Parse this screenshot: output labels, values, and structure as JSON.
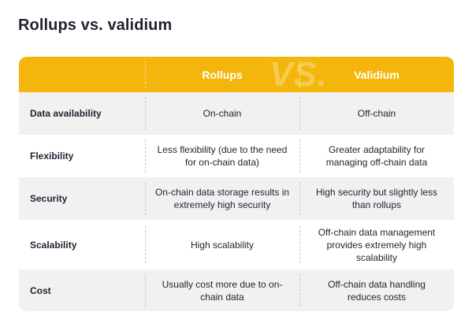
{
  "title": "Rollups vs. validium",
  "header": {
    "col_a": "Rollups",
    "col_b": "Validium",
    "watermark": "VS."
  },
  "rows": [
    {
      "label": "Data availability",
      "rollups": "On-chain",
      "validium": "Off-chain"
    },
    {
      "label": "Flexibility",
      "rollups": "Less flexibility (due to the need for on-chain data)",
      "validium": "Greater adaptability for managing off-chain data"
    },
    {
      "label": "Security",
      "rollups": "On-chain data storage results in extremely high security",
      "validium": "High security but slightly less than rollups"
    },
    {
      "label": "Scalability",
      "rollups": "High scalability",
      "validium": "Off-chain data management provides extremely high scalability"
    },
    {
      "label": "Cost",
      "rollups": "Usually cost more due to on-chain data",
      "validium": "Off-chain data handling reduces costs"
    }
  ],
  "colors": {
    "header_bg": "#f4b60d",
    "row_alt_bg": "#f1f1f1",
    "text": "#1f2330"
  }
}
